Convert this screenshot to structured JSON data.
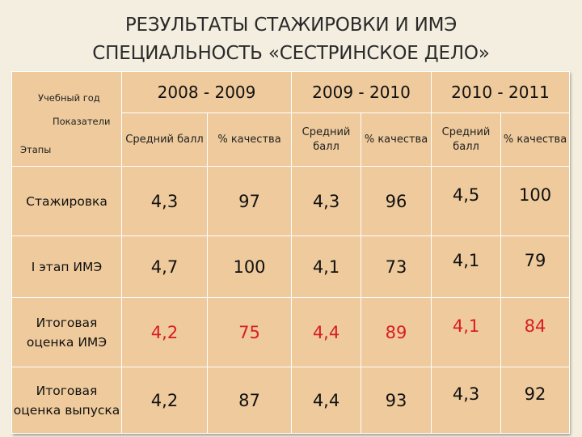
{
  "title": {
    "line1": "РЕЗУЛЬТАТЫ СТАЖИРОВКИ И ИМЭ",
    "line2": "СПЕЦИАЛЬНОСТЬ «СЕСТРИНСКОЕ ДЕЛО»"
  },
  "table": {
    "corner": {
      "year_label": "Учебный год",
      "indicators_label": "Показатели",
      "stages_label": "Этапы"
    },
    "years": [
      "2008 - 2009",
      "2009 - 2010",
      "2010 - 2011"
    ],
    "subheaders": [
      "Средний балл",
      "% качества",
      "Средний балл",
      "% качества",
      "Средний балл",
      "% качества"
    ],
    "rows": [
      {
        "stage": "Стажировка",
        "values": [
          "4,3",
          "97",
          "4,3",
          "96",
          "4,5",
          "100"
        ]
      },
      {
        "stage": "I этап ИМЭ",
        "values": [
          "4,7",
          "100",
          "4,1",
          "73",
          "4,1",
          "79"
        ]
      },
      {
        "stage": "Итоговая оценка ИМЭ",
        "values": [
          "4,2",
          "75",
          "4,4",
          "89",
          "4,1",
          "84"
        ]
      },
      {
        "stage": "Итоговая оценка выпуска",
        "values": [
          "4,2",
          "87",
          "4,4",
          "93",
          "4,3",
          "92"
        ]
      }
    ]
  },
  "colors": {
    "background": "#f3eedf",
    "table_fill": "#eeca9c",
    "highlight_text": "#d81e1e"
  }
}
